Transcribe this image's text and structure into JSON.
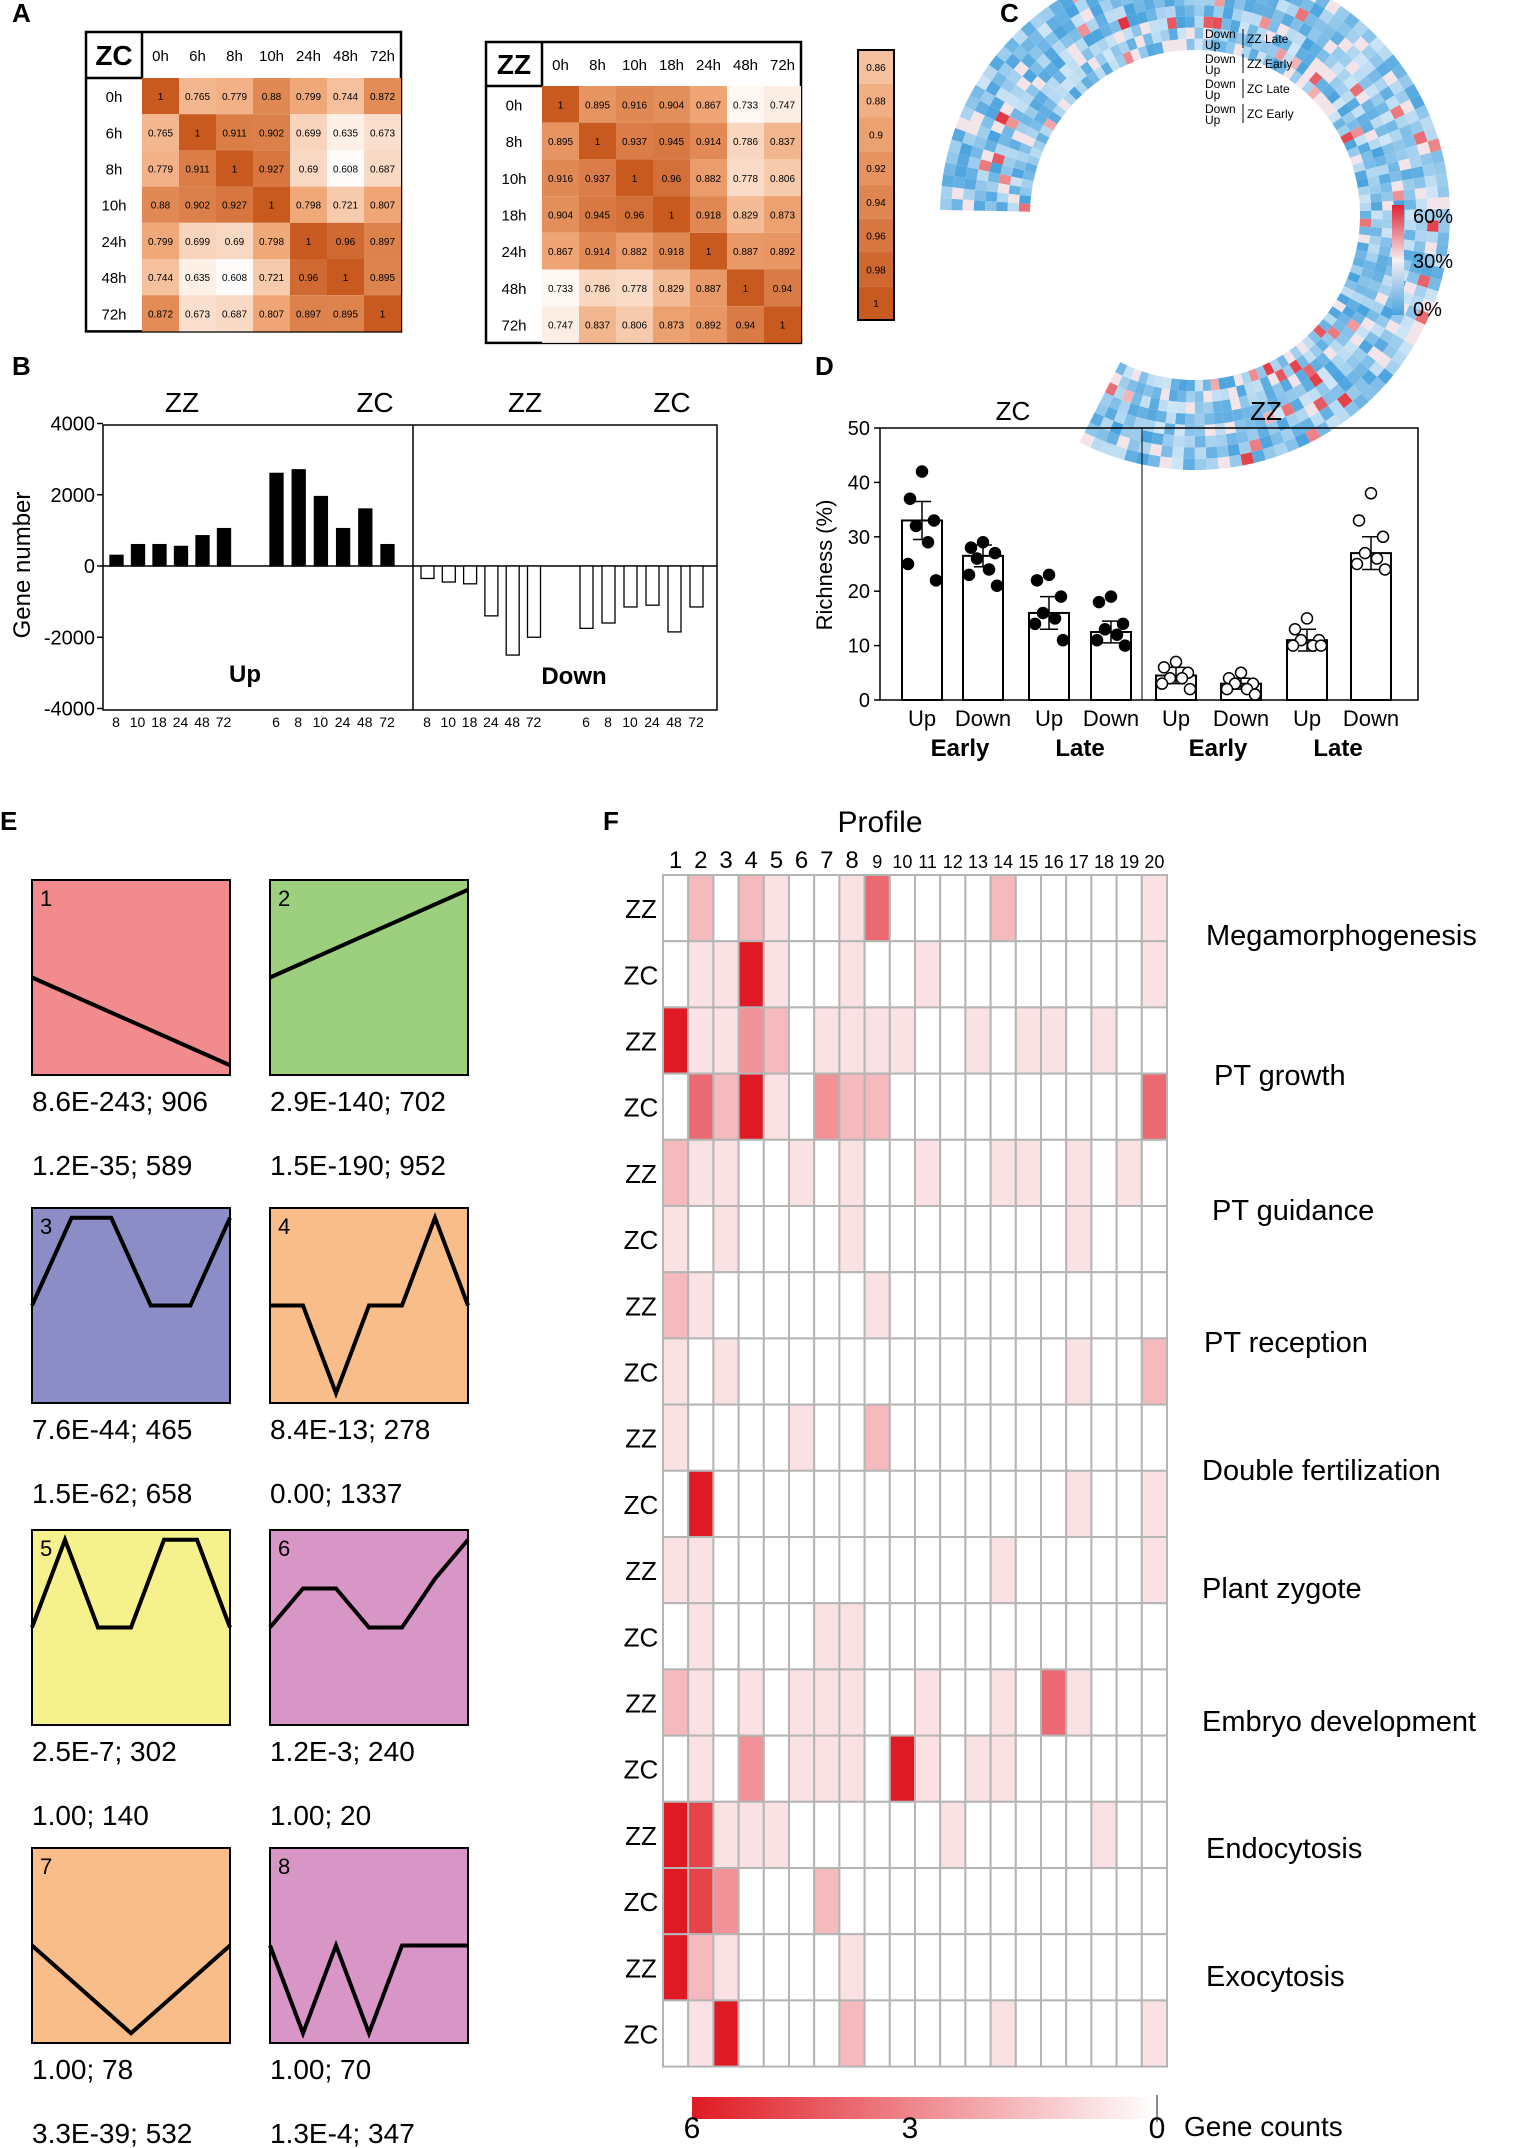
{
  "panels": {
    "a": "A",
    "b": "B",
    "c": "C",
    "d": "D",
    "e": "E",
    "f": "F"
  },
  "panel_a": {
    "zc": {
      "label": "ZC",
      "times": [
        "0h",
        "6h",
        "8h",
        "10h",
        "24h",
        "48h",
        "72h"
      ],
      "matrix": [
        [
          "1",
          "0.765",
          "0.779",
          "0.88",
          "0.799",
          "0.744",
          "0.872"
        ],
        [
          "0.765",
          "1",
          "0.911",
          "0.902",
          "0.699",
          "0.635",
          "0.673"
        ],
        [
          "0.779",
          "0.911",
          "1",
          "0.927",
          "0.69",
          "0.608",
          "0.687"
        ],
        [
          "0.88",
          "0.902",
          "0.927",
          "1",
          "0.798",
          "0.721",
          "0.807"
        ],
        [
          "0.799",
          "0.699",
          "0.69",
          "0.798",
          "1",
          "0.96",
          "0.897"
        ],
        [
          "0.744",
          "0.635",
          "0.608",
          "0.721",
          "0.96",
          "1",
          "0.895"
        ],
        [
          "0.872",
          "0.673",
          "0.687",
          "0.807",
          "0.897",
          "0.895",
          "1"
        ]
      ]
    },
    "zz": {
      "label": "ZZ",
      "times": [
        "0h",
        "8h",
        "10h",
        "18h",
        "24h",
        "48h",
        "72h"
      ],
      "matrix": [
        [
          "1",
          "0.895",
          "0.916",
          "0.904",
          "0.867",
          "0.733",
          "0.747"
        ],
        [
          "0.895",
          "1",
          "0.937",
          "0.945",
          "0.914",
          "0.786",
          "0.837"
        ],
        [
          "0.916",
          "0.937",
          "1",
          "0.96",
          "0.882",
          "0.778",
          "0.806"
        ],
        [
          "0.904",
          "0.945",
          "0.96",
          "1",
          "0.918",
          "0.829",
          "0.873"
        ],
        [
          "0.867",
          "0.914",
          "0.882",
          "0.918",
          "1",
          "0.887",
          "0.892"
        ],
        [
          "0.733",
          "0.786",
          "0.778",
          "0.829",
          "0.887",
          "1",
          "0.94"
        ],
        [
          "0.747",
          "0.837",
          "0.806",
          "0.873",
          "0.892",
          "0.94",
          "1"
        ]
      ]
    },
    "scale": [
      "0.86",
      "0.88",
      "0.9",
      "0.92",
      "0.94",
      "0.96",
      "0.98",
      "1"
    ]
  },
  "panel_c": {
    "ring_labels": [
      [
        "Down",
        "Up",
        "ZZ Late"
      ],
      [
        "Down",
        "Up",
        "ZZ Early"
      ],
      [
        "Down",
        "Up",
        "ZC Late"
      ],
      [
        "Down",
        "Up",
        "ZC Early"
      ]
    ],
    "scale": [
      "60%",
      "30%",
      "0%"
    ]
  },
  "chart_data": [
    {
      "type": "bar",
      "panel": "B",
      "ylabel": "Gene number",
      "ylim": [
        -4000,
        4000
      ],
      "yticks": [
        "4000",
        "2000",
        "0",
        "-2000",
        "-4000"
      ],
      "group_labels": [
        "ZZ",
        "ZC",
        "ZZ",
        "ZC"
      ],
      "section_labels": [
        "Up",
        "Down"
      ],
      "series": [
        {
          "name": "Up ZZ",
          "categories": [
            "8",
            "10",
            "18",
            "24",
            "48",
            "72"
          ],
          "values": [
            300,
            600,
            600,
            550,
            850,
            1050
          ]
        },
        {
          "name": "Up ZC",
          "categories": [
            "6",
            "8",
            "10",
            "24",
            "48",
            "72"
          ],
          "values": [
            2600,
            2700,
            1950,
            1050,
            1600,
            600
          ]
        },
        {
          "name": "Down ZZ",
          "categories": [
            "8",
            "10",
            "18",
            "24",
            "48",
            "72"
          ],
          "values": [
            -350,
            -450,
            -500,
            -1400,
            -2500,
            -2000
          ]
        },
        {
          "name": "Down ZC",
          "categories": [
            "6",
            "8",
            "10",
            "24",
            "48",
            "72"
          ],
          "values": [
            -1750,
            -1600,
            -1150,
            -1100,
            -1850,
            -1150
          ]
        }
      ]
    },
    {
      "type": "bar",
      "panel": "D",
      "ylabel": "Richness (%)",
      "ylim": [
        0,
        50
      ],
      "yticks": [
        "50",
        "40",
        "30",
        "20",
        "10",
        "0"
      ],
      "groups": [
        "ZC",
        "ZZ"
      ],
      "categories": [
        "Up",
        "Down",
        "Up",
        "Down",
        "Up",
        "Down",
        "Up",
        "Down"
      ],
      "stage_labels": [
        "Early",
        "Late",
        "Early",
        "Late"
      ],
      "values": [
        33,
        26.5,
        16,
        12.5,
        4.5,
        3,
        11,
        27
      ],
      "errors": [
        3.5,
        2,
        3,
        2,
        1.5,
        1,
        2,
        3
      ],
      "points": [
        [
          42,
          37,
          33,
          32,
          29,
          25,
          22
        ],
        [
          29,
          28,
          27,
          26,
          24,
          23,
          21
        ],
        [
          23,
          22,
          19,
          16,
          15,
          14,
          11
        ],
        [
          19,
          18,
          14,
          13,
          12,
          11,
          10
        ],
        [
          7,
          6,
          5,
          4,
          4,
          3,
          2
        ],
        [
          5,
          4,
          3,
          3,
          2,
          2,
          1
        ],
        [
          15,
          13,
          11,
          11,
          10,
          10,
          10
        ],
        [
          38,
          33,
          30,
          27,
          26,
          25,
          24
        ]
      ]
    },
    {
      "type": "heatmap",
      "panel": "F",
      "title": "Profile",
      "columns": [
        "1",
        "2",
        "3",
        "4",
        "5",
        "6",
        "7",
        "8",
        "9",
        "10",
        "11",
        "12",
        "13",
        "14",
        "15",
        "16",
        "17",
        "18",
        "19",
        "20"
      ],
      "row_labels": [
        "ZZ",
        "ZC",
        "ZZ",
        "ZC",
        "ZZ",
        "ZC",
        "ZZ",
        "ZC",
        "ZZ",
        "ZC",
        "ZZ",
        "ZC",
        "ZZ",
        "ZC",
        "ZZ",
        "ZC",
        "ZZ",
        "ZC"
      ],
      "categories": [
        "Megamorphogenesis",
        "PT growth",
        "PT guidance",
        "PT reception",
        "Double fertilization",
        "Plant zygote",
        "Embryo development",
        "Endocytosis",
        "Exocytosis"
      ],
      "values": [
        [
          0,
          2,
          0,
          2,
          1,
          0,
          0,
          1,
          4,
          0,
          0,
          0,
          0,
          2,
          0,
          0,
          0,
          0,
          0,
          1
        ],
        [
          0,
          1,
          1,
          6,
          1,
          0,
          0,
          1,
          0,
          0,
          1,
          0,
          0,
          0,
          0,
          0,
          0,
          0,
          0,
          1
        ],
        [
          6,
          1,
          1,
          3,
          2,
          0,
          1,
          1,
          1,
          1,
          0,
          0,
          1,
          0,
          1,
          1,
          0,
          1,
          0,
          0
        ],
        [
          0,
          4,
          2,
          6,
          1,
          0,
          3,
          2,
          2,
          0,
          0,
          0,
          0,
          0,
          0,
          0,
          0,
          0,
          0,
          4
        ],
        [
          2,
          1,
          1,
          0,
          0,
          1,
          0,
          1,
          0,
          0,
          1,
          0,
          0,
          1,
          1,
          0,
          1,
          0,
          1,
          0
        ],
        [
          1,
          0,
          1,
          0,
          0,
          0,
          0,
          1,
          0,
          0,
          0,
          0,
          0,
          0,
          0,
          0,
          1,
          0,
          0,
          0
        ],
        [
          2,
          1,
          0,
          0,
          0,
          0,
          0,
          0,
          1,
          0,
          0,
          0,
          0,
          0,
          0,
          0,
          0,
          0,
          0,
          0
        ],
        [
          1,
          0,
          1,
          0,
          0,
          0,
          0,
          0,
          0,
          0,
          0,
          0,
          0,
          0,
          0,
          0,
          1,
          0,
          0,
          2
        ],
        [
          1,
          0,
          0,
          0,
          0,
          1,
          0,
          0,
          2,
          0,
          0,
          0,
          0,
          0,
          0,
          0,
          0,
          0,
          0,
          0
        ],
        [
          0,
          6,
          0,
          0,
          0,
          0,
          0,
          0,
          0,
          0,
          0,
          0,
          0,
          0,
          0,
          0,
          1,
          0,
          0,
          1
        ],
        [
          1,
          1,
          0,
          0,
          0,
          0,
          0,
          0,
          0,
          0,
          0,
          0,
          0,
          1,
          0,
          0,
          0,
          0,
          0,
          1
        ],
        [
          0,
          1,
          0,
          0,
          0,
          0,
          1,
          1,
          0,
          0,
          0,
          0,
          0,
          0,
          0,
          0,
          0,
          0,
          0,
          0
        ],
        [
          2,
          1,
          0,
          1,
          0,
          1,
          1,
          1,
          0,
          0,
          1,
          0,
          0,
          1,
          0,
          4,
          1,
          0,
          0,
          0
        ],
        [
          0,
          1,
          0,
          3,
          0,
          1,
          1,
          1,
          0,
          6,
          1,
          0,
          1,
          1,
          0,
          0,
          0,
          0,
          0,
          0
        ],
        [
          6,
          5,
          1,
          1,
          1,
          0,
          0,
          0,
          0,
          0,
          0,
          1,
          0,
          0,
          0,
          0,
          0,
          1,
          0,
          0
        ],
        [
          6,
          5,
          3,
          0,
          0,
          0,
          2,
          0,
          0,
          0,
          0,
          0,
          0,
          0,
          0,
          0,
          0,
          0,
          0,
          0
        ],
        [
          6,
          2,
          1,
          0,
          0,
          0,
          0,
          1,
          0,
          0,
          0,
          0,
          0,
          0,
          0,
          0,
          0,
          0,
          0,
          0
        ],
        [
          0,
          1,
          6,
          0,
          0,
          0,
          0,
          2,
          0,
          0,
          0,
          0,
          0,
          1,
          0,
          0,
          0,
          0,
          0,
          1
        ]
      ],
      "scale_labels": [
        "6",
        "3",
        "0"
      ],
      "scale_title": "Gene counts"
    }
  ],
  "panel_e": {
    "profiles": [
      {
        "num": "1",
        "color": "#f28b8e",
        "pts": [
          0.5,
          0.05
        ],
        "stats1": "8.6E-243; 906",
        "stats2": "1.2E-35; 589"
      },
      {
        "num": "2",
        "color": "#9cd07e",
        "pts": [
          0.5,
          0.95
        ],
        "stats1": "2.9E-140; 702",
        "stats2": "1.5E-190; 952"
      },
      {
        "num": "3",
        "color": "#8c8cc6",
        "pts": [
          0.5,
          0.95,
          0.95,
          0.5,
          0.5,
          0.95
        ],
        "stats1": "7.6E-44; 465",
        "stats2": "1.5E-62; 658"
      },
      {
        "num": "4",
        "color": "#f9bd8a",
        "pts": [
          0.5,
          0.5,
          0.05,
          0.5,
          0.5,
          0.95,
          0.5
        ],
        "stats1": "8.4E-13; 278",
        "stats2": "0.00; 1337"
      },
      {
        "num": "5",
        "color": "#f5f28e",
        "pts": [
          0.5,
          0.95,
          0.5,
          0.5,
          0.95,
          0.95,
          0.5
        ],
        "stats1": "2.5E-7; 302",
        "stats2": "1.00; 140"
      },
      {
        "num": "6",
        "color": "#d896c6",
        "pts": [
          0.5,
          0.7,
          0.7,
          0.5,
          0.5,
          0.75,
          0.95
        ],
        "stats1": "1.2E-3; 240",
        "stats2": "1.00; 20"
      },
      {
        "num": "7",
        "color": "#f9bd8a",
        "pts": [
          0.5,
          0.05,
          0.5
        ],
        "stats1": "1.00; 78",
        "stats2": "3.3E-39; 532"
      },
      {
        "num": "8",
        "color": "#d896c6",
        "pts": [
          0.5,
          0.05,
          0.5,
          0.05,
          0.5,
          0.5,
          0.5
        ],
        "stats1": "1.00; 70",
        "stats2": "1.3E-4; 347"
      }
    ]
  }
}
